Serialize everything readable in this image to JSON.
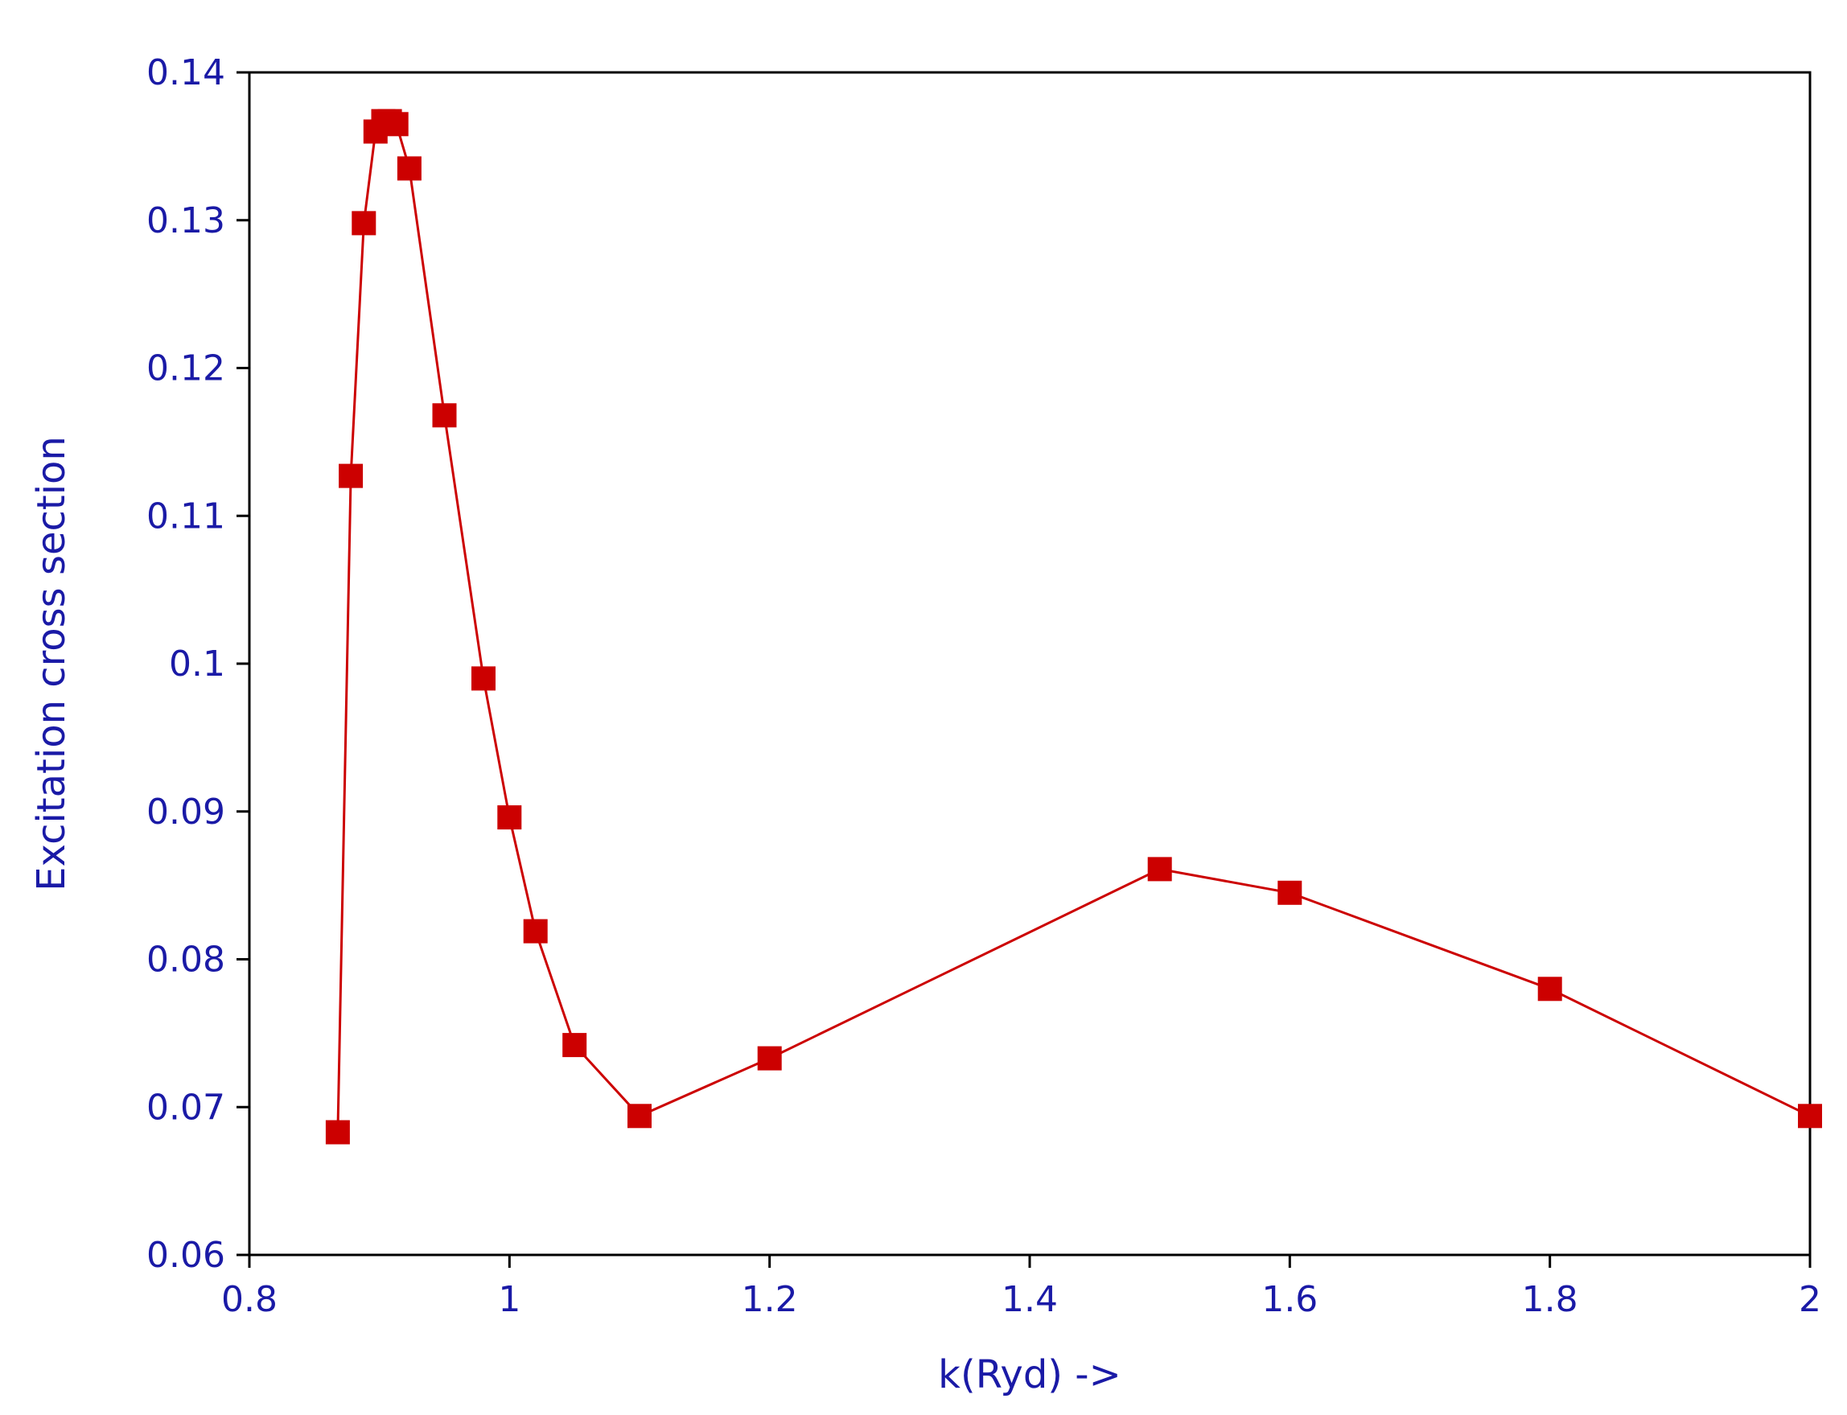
{
  "chart_data": {
    "type": "line",
    "title": "",
    "xlabel": "k(Ryd) ->",
    "ylabel": "Excitation cross section",
    "xlim": [
      0.8,
      2.0
    ],
    "ylim": [
      0.06,
      0.14
    ],
    "xticks": [
      0.8,
      1.0,
      1.2,
      1.4,
      1.6,
      1.8,
      2.0
    ],
    "xtick_labels": [
      "0.8",
      "1",
      "1.2",
      "1.4",
      "1.6",
      "1.8",
      "2"
    ],
    "yticks": [
      0.06,
      0.07,
      0.08,
      0.09,
      0.1,
      0.11,
      0.12,
      0.13,
      0.14
    ],
    "ytick_labels": [
      "0.06",
      "0.07",
      "0.08",
      "0.09",
      "0.1",
      "0.11",
      "0.12",
      "0.13",
      "0.14"
    ],
    "grid": false,
    "legend": "none",
    "series": [
      {
        "marker": "square",
        "color": "#cc0000",
        "x": [
          0.868,
          0.878,
          0.888,
          0.897,
          0.903,
          0.908,
          0.913,
          0.923,
          0.95,
          0.98,
          1.0,
          1.02,
          1.05,
          1.1,
          1.2,
          1.5,
          1.6,
          1.8,
          2.0
        ],
        "y": [
          0.0683,
          0.1127,
          0.1298,
          0.136,
          0.1367,
          0.1367,
          0.1365,
          0.1335,
          0.1168,
          0.099,
          0.0896,
          0.0819,
          0.0742,
          0.0694,
          0.0733,
          0.0861,
          0.0845,
          0.078,
          0.0694
        ]
      }
    ],
    "colors": {
      "axis": "#000000",
      "text": "#1a1aa6",
      "series": "#cc0000"
    }
  }
}
